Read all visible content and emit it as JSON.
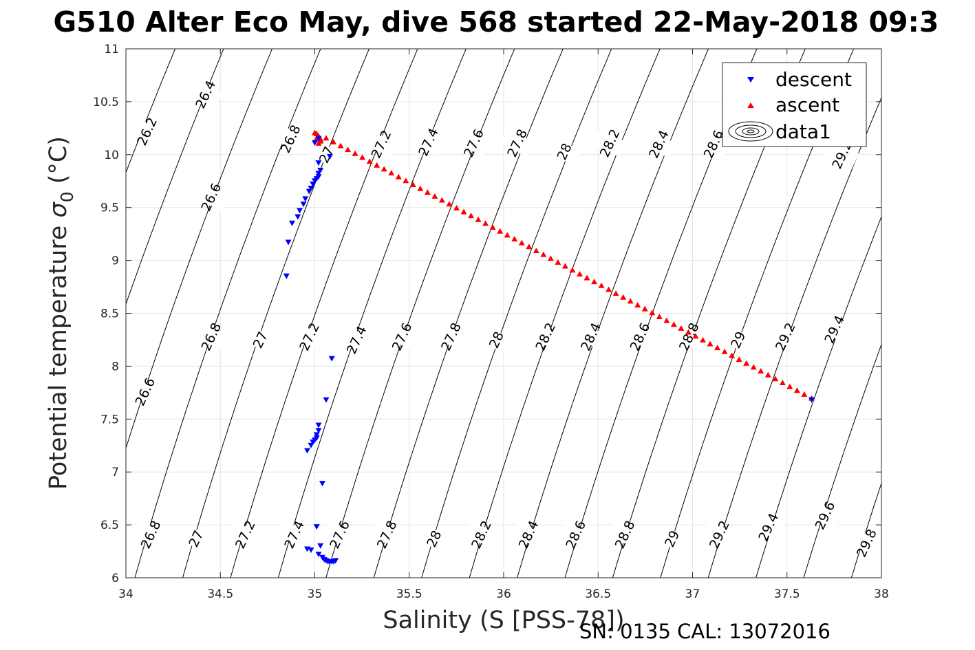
{
  "chart_data": {
    "type": "scatter",
    "title": "G510 Alter Eco May, dive 568 started 22-May-2018 09:3",
    "xlabel": "Salinity (S [PSS-78])",
    "ylabel_main": "Potential temperature ",
    "ylabel_symbol": "σ",
    "ylabel_subscript": "0",
    "ylabel_unit": " (°C)",
    "footer": "SN: 0135  CAL: 13072016",
    "xlim": [
      34,
      38
    ],
    "ylim": [
      6,
      11
    ],
    "xticks": [
      34,
      34.5,
      35,
      35.5,
      36,
      36.5,
      37,
      37.5,
      38
    ],
    "xtick_labels": [
      "34",
      "34.5",
      "35",
      "35.5",
      "36",
      "36.5",
      "37",
      "37.5",
      "38"
    ],
    "yticks": [
      6,
      6.5,
      7,
      7.5,
      8,
      8.5,
      9,
      9.5,
      10,
      10.5,
      11
    ],
    "ytick_labels": [
      "6",
      "6.5",
      "7",
      "7.5",
      "8",
      "8.5",
      "9",
      "9.5",
      "10",
      "10.5",
      "11"
    ],
    "grid": true,
    "legend_position": "top-right",
    "legend": [
      "descent",
      "ascent",
      "data1"
    ],
    "colors": {
      "descent": "#0000ff",
      "ascent": "#ff0000",
      "contour": "#000000",
      "grid": "#e6e6e6"
    },
    "contours": {
      "levels": [
        26.2,
        26.4,
        26.6,
        26.8,
        27,
        27.2,
        27.4,
        27.6,
        27.8,
        28,
        28.2,
        28.4,
        28.6,
        28.8,
        29,
        29.2,
        29.4,
        29.6,
        29.8
      ],
      "labels": [
        {
          "text": "26.2",
          "x": 34.11,
          "y": 10.22
        },
        {
          "text": "26.4",
          "x": 34.42,
          "y": 10.57
        },
        {
          "text": "26.6",
          "x": 34.45,
          "y": 9.6
        },
        {
          "text": "26.8",
          "x": 34.87,
          "y": 10.15
        },
        {
          "text": "27",
          "x": 35.06,
          "y": 10.0
        },
        {
          "text": "27.2",
          "x": 35.35,
          "y": 10.1
        },
        {
          "text": "27.4",
          "x": 35.6,
          "y": 10.12
        },
        {
          "text": "27.6",
          "x": 35.84,
          "y": 10.11
        },
        {
          "text": "27.8",
          "x": 36.07,
          "y": 10.11
        },
        {
          "text": "28",
          "x": 36.32,
          "y": 10.03
        },
        {
          "text": "28.2",
          "x": 36.56,
          "y": 10.11
        },
        {
          "text": "28.4",
          "x": 36.82,
          "y": 10.1
        },
        {
          "text": "28.6",
          "x": 37.11,
          "y": 10.1
        },
        {
          "text": "29.2",
          "x": 37.79,
          "y": 10.0
        },
        {
          "text": "26.8",
          "x": 34.45,
          "y": 8.28
        },
        {
          "text": "27",
          "x": 34.71,
          "y": 8.25
        },
        {
          "text": "27.2",
          "x": 34.97,
          "y": 8.28
        },
        {
          "text": "27.4",
          "x": 35.22,
          "y": 8.25
        },
        {
          "text": "27.6",
          "x": 35.46,
          "y": 8.28
        },
        {
          "text": "27.8",
          "x": 35.72,
          "y": 8.28
        },
        {
          "text": "28",
          "x": 35.96,
          "y": 8.25
        },
        {
          "text": "28.2",
          "x": 36.22,
          "y": 8.28
        },
        {
          "text": "28.4",
          "x": 36.46,
          "y": 8.28
        },
        {
          "text": "28.6",
          "x": 36.72,
          "y": 8.28
        },
        {
          "text": "28.8",
          "x": 36.98,
          "y": 8.28
        },
        {
          "text": "29",
          "x": 37.24,
          "y": 8.25
        },
        {
          "text": "29.2",
          "x": 37.49,
          "y": 8.28
        },
        {
          "text": "29.4",
          "x": 37.75,
          "y": 8.35
        },
        {
          "text": "26.6",
          "x": 34.1,
          "y": 7.76
        },
        {
          "text": "26.8",
          "x": 34.13,
          "y": 6.41
        },
        {
          "text": "27",
          "x": 34.37,
          "y": 6.37
        },
        {
          "text": "27.2",
          "x": 34.63,
          "y": 6.41
        },
        {
          "text": "27.4",
          "x": 34.89,
          "y": 6.41
        },
        {
          "text": "27.6",
          "x": 35.13,
          "y": 6.41
        },
        {
          "text": "27.8",
          "x": 35.38,
          "y": 6.41
        },
        {
          "text": "28",
          "x": 35.63,
          "y": 6.37
        },
        {
          "text": "28.2",
          "x": 35.88,
          "y": 6.41
        },
        {
          "text": "28.4",
          "x": 36.13,
          "y": 6.41
        },
        {
          "text": "28.6",
          "x": 36.38,
          "y": 6.41
        },
        {
          "text": "28.8",
          "x": 36.64,
          "y": 6.41
        },
        {
          "text": "29",
          "x": 36.89,
          "y": 6.37
        },
        {
          "text": "29.2",
          "x": 37.14,
          "y": 6.41
        },
        {
          "text": "29.4",
          "x": 37.4,
          "y": 6.48
        },
        {
          "text": "29.6",
          "x": 37.7,
          "y": 6.59
        },
        {
          "text": "29.8",
          "x": 37.92,
          "y": 6.33
        }
      ]
    },
    "series": [
      {
        "name": "descent",
        "marker": "triangle-down",
        "points": [
          [
            35.0,
            10.11
          ],
          [
            35.02,
            10.15
          ],
          [
            35.08,
            9.98
          ],
          [
            35.02,
            9.92
          ],
          [
            35.03,
            9.85
          ],
          [
            35.02,
            9.82
          ],
          [
            35.02,
            9.79
          ],
          [
            35.01,
            9.77
          ],
          [
            35.0,
            9.75
          ],
          [
            34.99,
            9.72
          ],
          [
            34.98,
            9.68
          ],
          [
            34.97,
            9.65
          ],
          [
            34.95,
            9.58
          ],
          [
            34.94,
            9.53
          ],
          [
            34.92,
            9.47
          ],
          [
            34.91,
            9.41
          ],
          [
            34.88,
            9.35
          ],
          [
            34.86,
            9.17
          ],
          [
            34.85,
            8.85
          ],
          [
            35.09,
            8.07
          ],
          [
            35.06,
            7.68
          ],
          [
            35.02,
            7.44
          ],
          [
            35.02,
            7.39
          ],
          [
            35.01,
            7.35
          ],
          [
            35.01,
            7.32
          ],
          [
            35.0,
            7.3
          ],
          [
            34.99,
            7.28
          ],
          [
            34.98,
            7.25
          ],
          [
            34.96,
            7.2
          ],
          [
            35.04,
            6.89
          ],
          [
            35.01,
            6.48
          ],
          [
            35.03,
            6.3
          ],
          [
            34.96,
            6.27
          ],
          [
            34.98,
            6.26
          ],
          [
            35.02,
            6.22
          ],
          [
            35.04,
            6.19
          ],
          [
            35.05,
            6.17
          ],
          [
            35.06,
            6.16
          ],
          [
            35.07,
            6.15
          ],
          [
            35.08,
            6.15
          ],
          [
            35.09,
            6.15
          ],
          [
            35.1,
            6.15
          ],
          [
            35.11,
            6.16
          ],
          [
            37.63,
            7.68
          ]
        ]
      },
      {
        "name": "ascent",
        "marker": "triangle-up",
        "points": [
          [
            35.0,
            10.21
          ],
          [
            35.01,
            10.2
          ],
          [
            35.02,
            10.18
          ],
          [
            35.03,
            10.15
          ],
          [
            35.03,
            10.13
          ],
          [
            35.02,
            10.11
          ],
          [
            35.01,
            10.16
          ]
        ],
        "line_from": [
          35.06,
          10.16
        ],
        "line_to": [
          37.63,
          7.7
        ],
        "line_count": 68
      }
    ]
  }
}
